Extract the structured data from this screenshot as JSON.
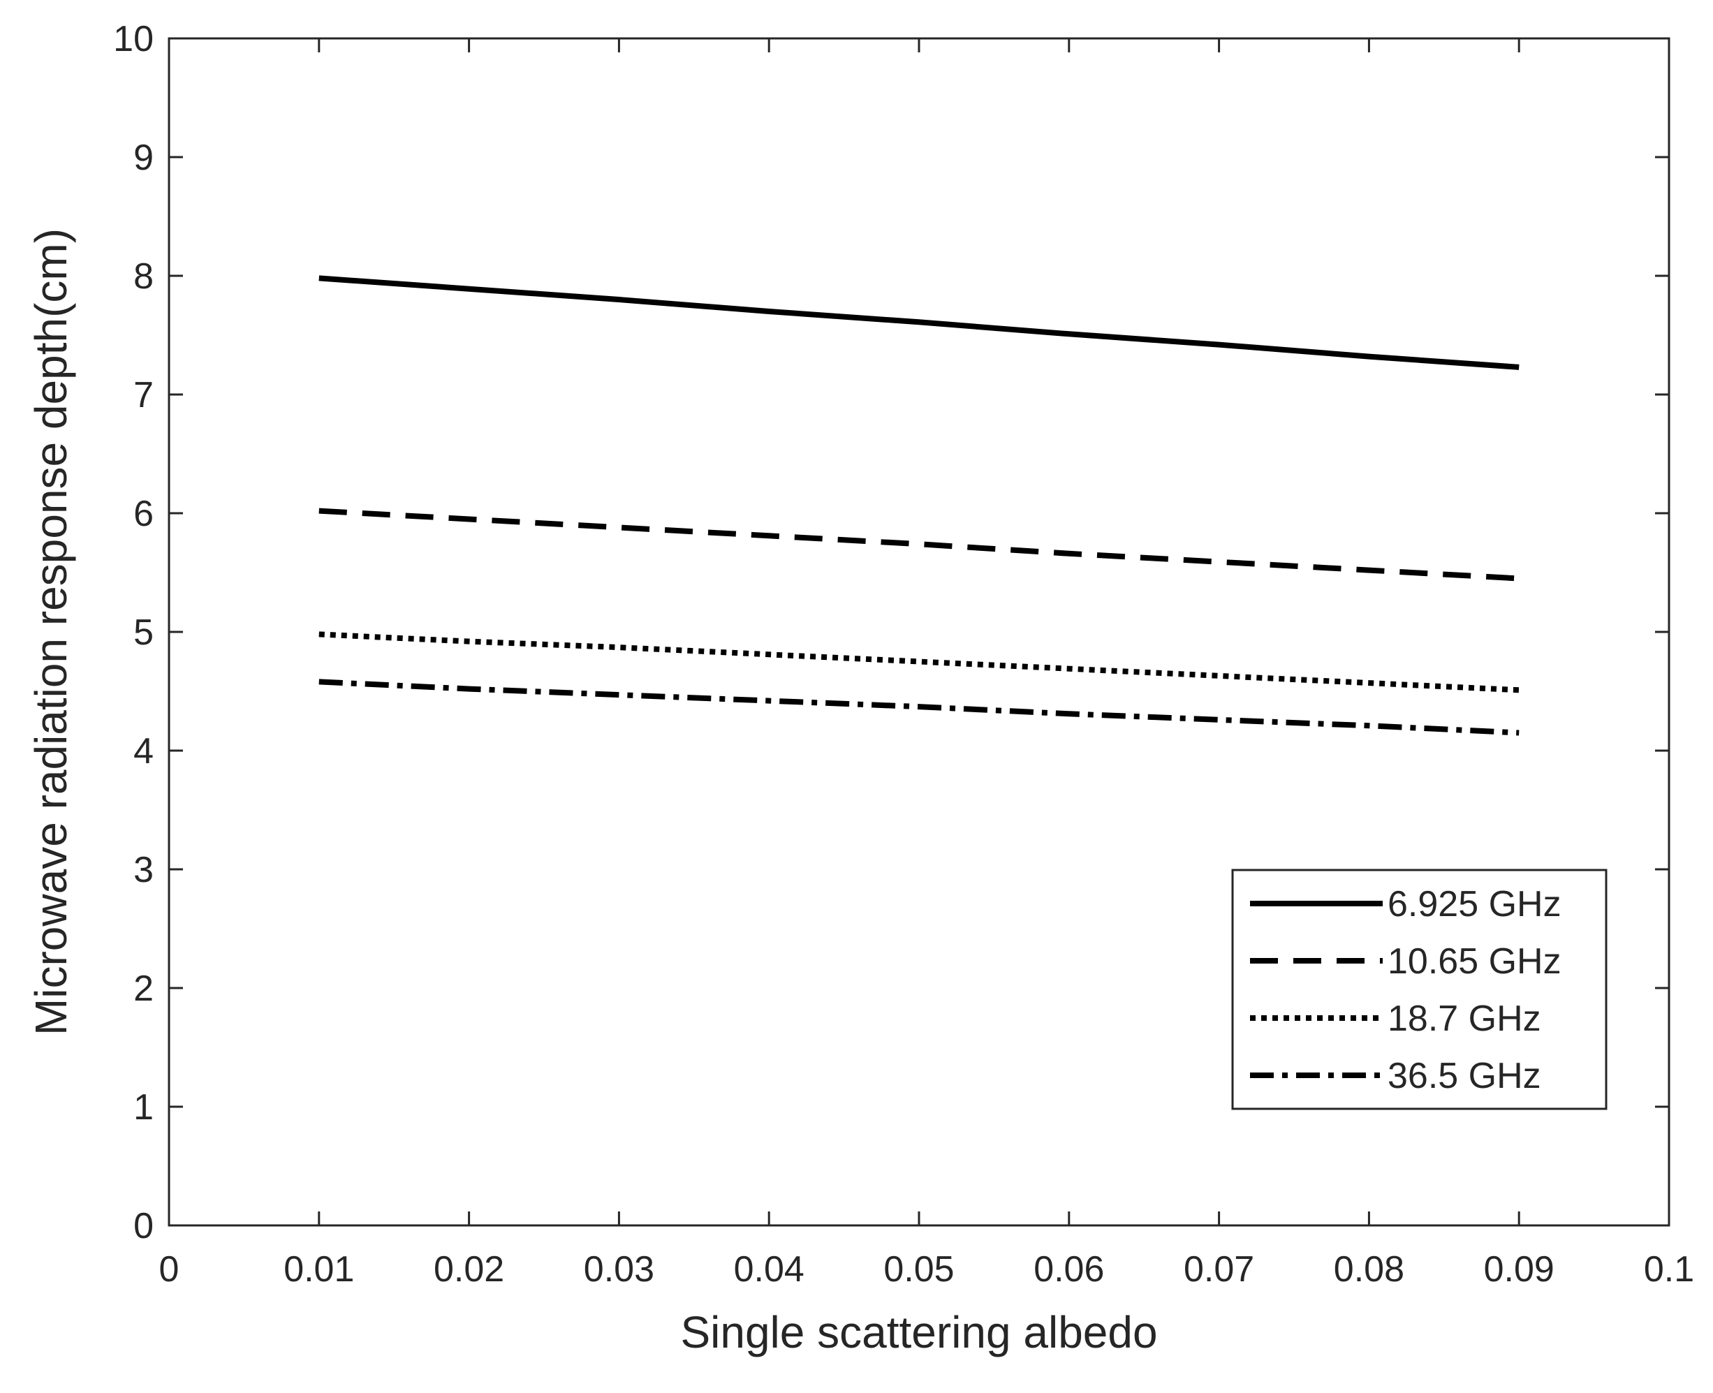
{
  "chart_data": {
    "type": "line",
    "xlabel": "Single scattering albedo",
    "ylabel": "Microwave radiation response depth(cm)",
    "x": [
      0.01,
      0.02,
      0.03,
      0.04,
      0.05,
      0.06,
      0.07,
      0.08,
      0.09
    ],
    "series": [
      {
        "name": "6.925 GHz",
        "color": "#000000",
        "linestyle": "-",
        "values": [
          7.98,
          7.89,
          7.8,
          7.7,
          7.61,
          7.51,
          7.42,
          7.32,
          7.23
        ]
      },
      {
        "name": "10.65 GHz",
        "color": "#000000",
        "linestyle": "--",
        "values": [
          6.02,
          5.95,
          5.88,
          5.81,
          5.74,
          5.66,
          5.59,
          5.52,
          5.45
        ]
      },
      {
        "name": "18.7 GHz",
        "color": "#000000",
        "linestyle": ":",
        "values": [
          4.98,
          4.92,
          4.87,
          4.81,
          4.75,
          4.69,
          4.63,
          4.57,
          4.51
        ]
      },
      {
        "name": "36.5 GHz",
        "color": "#000000",
        "linestyle": "-.",
        "values": [
          4.58,
          4.52,
          4.47,
          4.42,
          4.37,
          4.31,
          4.26,
          4.21,
          4.15
        ]
      }
    ],
    "xlim": [
      0,
      0.1
    ],
    "xticks": [
      0,
      0.01,
      0.02,
      0.03,
      0.04,
      0.05,
      0.06,
      0.07,
      0.08,
      0.09,
      0.1
    ],
    "ylim": [
      0,
      10
    ],
    "yticks": [
      0,
      1,
      2,
      3,
      4,
      5,
      6,
      7,
      8,
      9,
      10
    ],
    "grid": false,
    "legend": "lower right"
  }
}
